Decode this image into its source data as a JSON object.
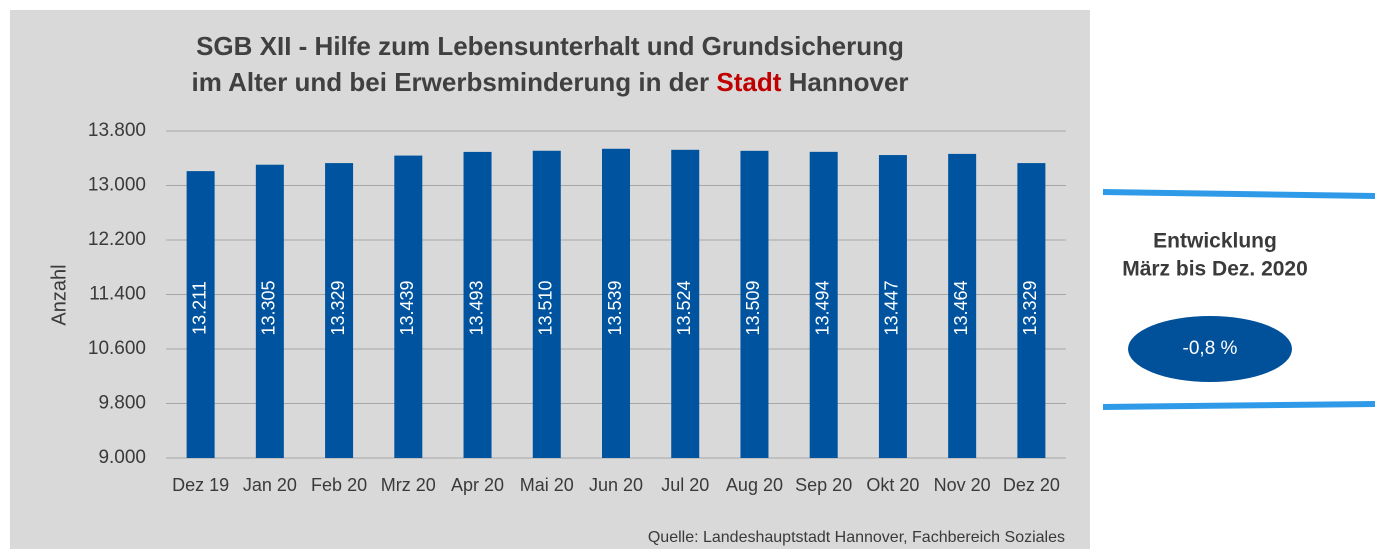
{
  "chart_data": {
    "type": "bar",
    "title_lines": [
      "SGB XII - Hilfe zum Lebensunterhalt und Grundsicherung",
      "im Alter und bei Erwerbsminderung in der"
    ],
    "title_highlight": "Stadt",
    "title_end": "Hannover",
    "highlight_color": "#c00000",
    "y_label": "Anzahl",
    "categories": [
      "Dez 19",
      "Jan 20",
      "Feb 20",
      "Mrz 20",
      "Apr 20",
      "Mai 20",
      "Jun 20",
      "Jul 20",
      "Aug 20",
      "Sep 20",
      "Okt 20",
      "Nov 20",
      "Dez 20"
    ],
    "values": [
      13211,
      13305,
      13329,
      13439,
      13493,
      13510,
      13539,
      13524,
      13509,
      13494,
      13447,
      13464,
      13329
    ],
    "value_labels": [
      "13.211",
      "13.305",
      "13.329",
      "13.439",
      "13.493",
      "13.510",
      "13.539",
      "13.524",
      "13.509",
      "13.494",
      "13.447",
      "13.464",
      "13.329"
    ],
    "color": "#00549f",
    "ylim": [
      9000,
      13800
    ],
    "yticks": [
      {
        "value": 9000,
        "label": "9.000"
      },
      {
        "value": 9800,
        "label": "9.800"
      },
      {
        "value": 10600,
        "label": "10.600"
      },
      {
        "value": 11400,
        "label": "11.400"
      },
      {
        "value": 12200,
        "label": "12.200"
      },
      {
        "value": 13000,
        "label": "13.000"
      },
      {
        "value": 13800,
        "label": "13.800"
      }
    ],
    "grid": true,
    "source": "Quelle: Landeshauptstadt Hannover, Fachbereich Soziales",
    "side_panel": {
      "title_lines": [
        "Entwicklung",
        "März bis Dez. 2020"
      ],
      "value_label": "-0,8 %"
    }
  }
}
